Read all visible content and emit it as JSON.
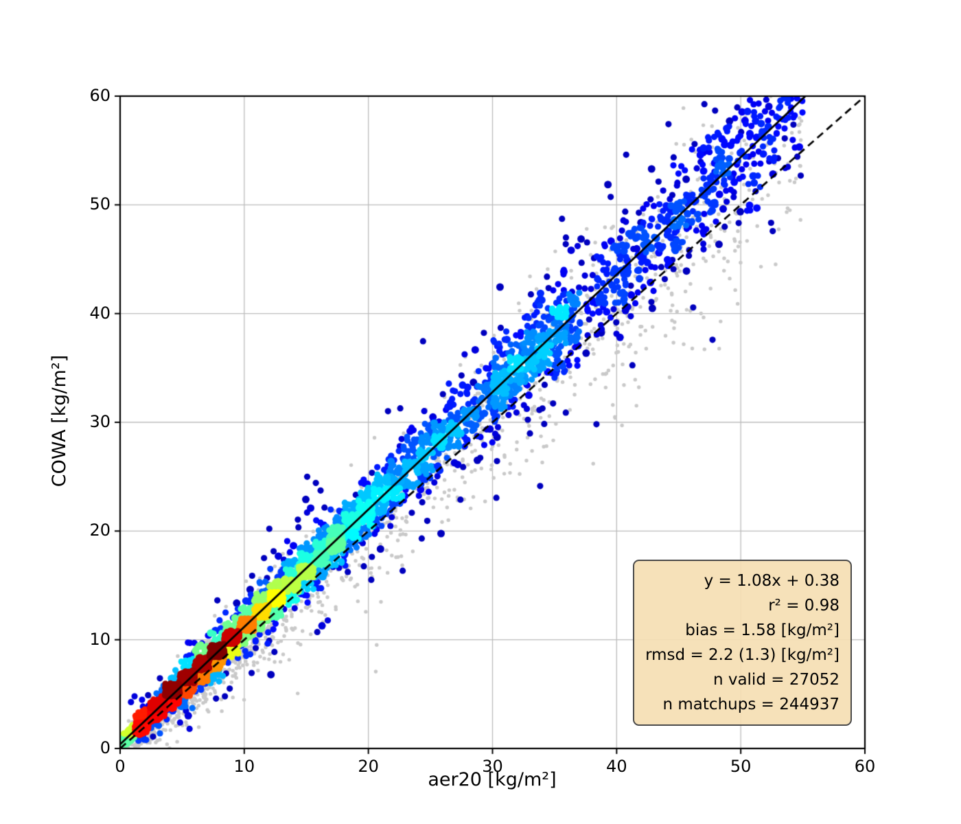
{
  "figure": {
    "background": "#ffffff",
    "axes_facecolor": "#ffffff",
    "spine_color": "#000000",
    "grid_color": "#bcbcbc"
  },
  "chart_data": {
    "type": "scatter",
    "title": "",
    "xlabel": "aer20 [kg/m²]",
    "ylabel": "COWA [kg/m²]",
    "xlim": [
      0,
      60
    ],
    "ylim": [
      0,
      60
    ],
    "xticks": [
      "0",
      "10",
      "20",
      "30",
      "40",
      "50",
      "60"
    ],
    "yticks": [
      "0",
      "10",
      "20",
      "30",
      "40",
      "50",
      "60"
    ],
    "grid": true,
    "grid_interval": 10,
    "lines": [
      {
        "name": "regression-line",
        "style": "solid",
        "color": "#000000",
        "slope": 1.08,
        "intercept": 0.38
      },
      {
        "name": "identity-line",
        "style": "dashed",
        "color": "#000000",
        "slope": 1.0,
        "intercept": 0.0
      }
    ],
    "series": [
      {
        "name": "all-matchups",
        "marker_color": "#c9c9c9",
        "n_annotated": 244937,
        "marker": "small-dot"
      },
      {
        "name": "valid-matchups",
        "colormap": "jet",
        "density_colored": true,
        "n_annotated": 27052,
        "marker": "dot"
      }
    ],
    "stats": {
      "equation": "y = 1.08x + 0.38",
      "r2": "r² = 0.98",
      "bias": "bias = 1.58 [kg/m²]",
      "rmsd": "rmsd = 2.2 (1.3) [kg/m²]",
      "n_valid": "n valid = 27052",
      "n_matchups": "n matchups = 244937"
    },
    "stats_box_style": {
      "background": "#f5deb3",
      "border": "#4a4a4a"
    },
    "render": {
      "seed": 1337,
      "n_core_points": 4600,
      "n_outlier_points": 150,
      "n_high_cluster_points": 70,
      "n_gray_points": 1650,
      "n_gray_strays": 35,
      "density_exponent": 0.55
    }
  }
}
